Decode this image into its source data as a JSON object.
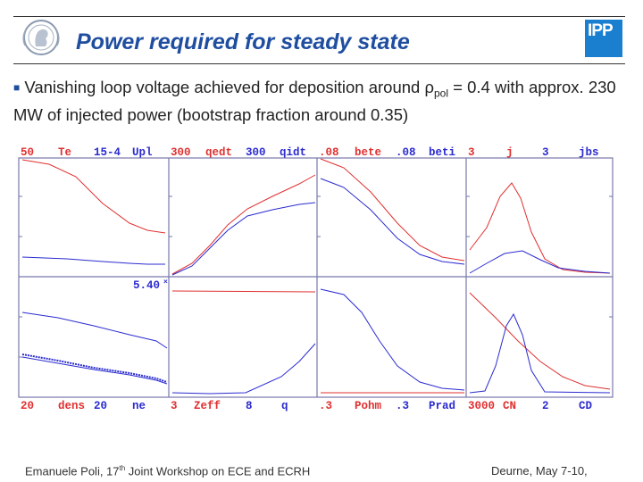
{
  "slide": {
    "title": "Power required for steady state",
    "bullet": {
      "part1": "Vanishing loop voltage achieved for deposition around ρ",
      "sub": "pol",
      "part2": " = 0.4 with approx. 230 MW of injected power (bootstrap fraction around 0.35)"
    },
    "logo_right_text": "IPP"
  },
  "plot_panels": {
    "top_labels": [
      [
        "50",
        "Te",
        "15-4",
        "Upl"
      ],
      [
        "300",
        "qedt",
        "300",
        "qidt"
      ],
      [
        ".08",
        "bete",
        ".08",
        "beti"
      ],
      [
        "3",
        "j",
        "3",
        "jbs"
      ]
    ],
    "bottom_labels": [
      [
        "20",
        "dens",
        "20",
        "ne"
      ],
      [
        "3",
        "Zeff",
        "8",
        "q"
      ],
      [
        ".3",
        "Pohm",
        ".3",
        "Prad"
      ],
      [
        "3000",
        "CN",
        "2",
        "CD"
      ]
    ],
    "center_value": "5.40",
    "colors": {
      "red": "#e03030",
      "blue": "#2b2bd0",
      "label_red": "#e03030",
      "label_blue": "#2b2bd0",
      "axis": "#7777aa"
    }
  },
  "footer": {
    "left_prefix": "Emanuele Poli, 17",
    "left_sup": "th",
    "left_suffix": " Joint Workshop on ECE and ECRH",
    "right": "Deurne, May 7-10,"
  }
}
